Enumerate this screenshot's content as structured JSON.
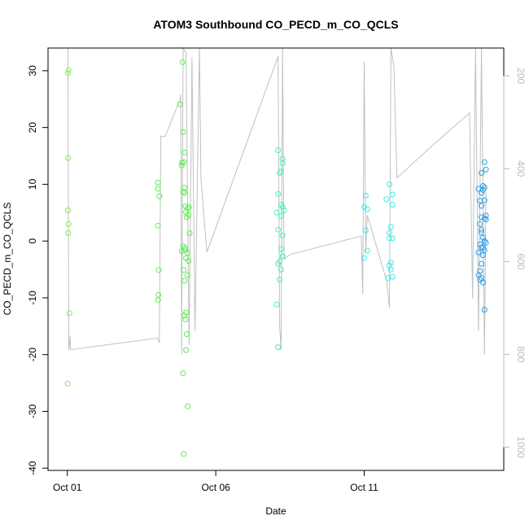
{
  "chart_data": {
    "type": "scatter",
    "title": "ATOM3 Southbound CO_PECD_m_CO_QCLS",
    "xlabel": "Date",
    "ylabel": "CO_PECD_m_CO_QCLS",
    "x_unit": "days since Oct 01",
    "xlim": [
      -0.65,
      14.7
    ],
    "ylim": [
      -40.4,
      34
    ],
    "x_ticks": [
      {
        "value": 0,
        "label": "Oct 01"
      },
      {
        "value": 5,
        "label": "Oct 06"
      },
      {
        "value": 10,
        "label": "Oct 11"
      }
    ],
    "y_ticks": [
      -40,
      -30,
      -20,
      -10,
      0,
      10,
      20,
      30
    ],
    "right_axis": {
      "color": "#bbbbbb",
      "ticks": [
        200,
        400,
        600,
        800,
        1000
      ],
      "range_top_value": 140,
      "range_bottom_value": 1050
    },
    "profile_color": "#c0c0c0",
    "profile_line": [
      [
        0.02,
        140
      ],
      [
        0.05,
        790
      ],
      [
        0.1,
        760
      ],
      [
        0.1,
        790
      ],
      [
        3.03,
        765
      ],
      [
        3.1,
        775
      ],
      [
        3.15,
        330
      ],
      [
        3.3,
        330
      ],
      [
        3.8,
        250
      ],
      [
        3.82,
        240
      ],
      [
        3.85,
        800
      ],
      [
        3.9,
        140
      ],
      [
        4.0,
        150
      ],
      [
        4.1,
        780
      ],
      [
        4.2,
        160
      ],
      [
        4.3,
        750
      ],
      [
        4.45,
        140
      ],
      [
        4.5,
        420
      ],
      [
        4.6,
        500
      ],
      [
        4.7,
        580
      ],
      [
        7.1,
        158
      ],
      [
        7.15,
        740
      ],
      [
        7.2,
        790
      ],
      [
        7.25,
        140
      ],
      [
        7.3,
        595
      ],
      [
        7.5,
        585
      ],
      [
        9.9,
        545
      ],
      [
        9.95,
        670
      ],
      [
        10.0,
        170
      ],
      [
        10.05,
        580
      ],
      [
        10.1,
        500
      ],
      [
        10.75,
        640
      ],
      [
        10.85,
        700
      ],
      [
        10.9,
        140
      ],
      [
        11.0,
        180
      ],
      [
        11.1,
        420
      ],
      [
        12.3,
        350
      ],
      [
        13.55,
        280
      ],
      [
        13.65,
        680
      ],
      [
        13.75,
        140
      ],
      [
        13.85,
        750
      ],
      [
        13.95,
        140
      ],
      [
        14.05,
        800
      ],
      [
        14.1,
        450
      ]
    ],
    "series": [
      {
        "color": "#80ee50",
        "points": [
          [
            0.02,
            29.6
          ],
          [
            0.04,
            30.1
          ],
          [
            0.03,
            14.6
          ],
          [
            0.02,
            5.4
          ],
          [
            0.04,
            3.0
          ],
          [
            0.03,
            1.4
          ],
          [
            0.07,
            -12.7
          ],
          [
            0.01,
            -25.1
          ]
        ]
      },
      {
        "color": "#5af050",
        "points": [
          [
            3.05,
            10.3
          ],
          [
            3.05,
            9.2
          ],
          [
            3.1,
            7.9
          ],
          [
            3.05,
            2.7
          ],
          [
            3.08,
            -5.1
          ],
          [
            3.07,
            -9.5
          ],
          [
            3.06,
            -10.4
          ],
          [
            3.8,
            24.1
          ],
          [
            3.88,
            31.5
          ],
          [
            3.9,
            19.2
          ],
          [
            3.95,
            15.6
          ],
          [
            3.85,
            13.3
          ],
          [
            3.92,
            13.9
          ],
          [
            3.95,
            9.4
          ],
          [
            3.9,
            8.7
          ],
          [
            3.95,
            8.5
          ],
          [
            3.98,
            6.1
          ],
          [
            4.05,
            5.8
          ],
          [
            4.0,
            5.1
          ],
          [
            4.02,
            4.2
          ],
          [
            4.1,
            6.0
          ],
          [
            4.12,
            1.4
          ],
          [
            3.85,
            -1.8
          ],
          [
            3.9,
            -0.9
          ],
          [
            3.97,
            -1.6
          ],
          [
            4.0,
            -3.0
          ],
          [
            4.05,
            -2.1
          ],
          [
            4.08,
            -3.5
          ],
          [
            3.92,
            -5.1
          ],
          [
            4.05,
            -6.0
          ],
          [
            3.95,
            -13.1
          ],
          [
            4.0,
            -12.6
          ],
          [
            3.98,
            -13.8
          ],
          [
            4.02,
            -16.4
          ],
          [
            4.0,
            -19.2
          ],
          [
            3.9,
            -23.3
          ],
          [
            4.05,
            -29.1
          ],
          [
            3.92,
            -37.5
          ],
          [
            3.95,
            -7.0
          ],
          [
            3.97,
            -1.2
          ],
          [
            3.86,
            13.8
          ],
          [
            4.08,
            4.6
          ]
        ]
      },
      {
        "color": "#48f0b0",
        "points": [
          [
            7.1,
            16.0
          ],
          [
            7.25,
            14.5
          ],
          [
            7.25,
            13.7
          ],
          [
            7.2,
            12.3
          ],
          [
            7.15,
            12.0
          ],
          [
            7.1,
            8.3
          ],
          [
            7.2,
            6.4
          ],
          [
            7.25,
            6.0
          ],
          [
            7.3,
            5.4
          ],
          [
            7.2,
            4.4
          ],
          [
            7.1,
            2.0
          ],
          [
            7.05,
            5.0
          ],
          [
            7.25,
            1.0
          ],
          [
            7.2,
            -1.4
          ],
          [
            7.25,
            -2.7
          ],
          [
            7.15,
            -3.6
          ],
          [
            7.1,
            -4.0
          ],
          [
            7.2,
            -5.0
          ],
          [
            7.15,
            -6.8
          ],
          [
            7.05,
            -11.2
          ],
          [
            7.1,
            -18.7
          ]
        ]
      },
      {
        "color": "#38e8e8",
        "points": [
          [
            10.05,
            8.0
          ],
          [
            10.0,
            6.0
          ],
          [
            10.1,
            5.6
          ],
          [
            10.05,
            1.9
          ],
          [
            10.1,
            -1.7
          ],
          [
            10.0,
            -3.0
          ],
          [
            10.85,
            10.0
          ],
          [
            10.75,
            7.4
          ],
          [
            10.95,
            8.2
          ],
          [
            10.95,
            6.4
          ],
          [
            10.9,
            2.5
          ],
          [
            10.85,
            0.5
          ],
          [
            10.95,
            0.5
          ],
          [
            10.9,
            -3.8
          ],
          [
            10.85,
            -4.3
          ],
          [
            10.9,
            -5.0
          ],
          [
            10.8,
            -6.5
          ],
          [
            10.95,
            -6.3
          ],
          [
            10.85,
            1.5
          ]
        ]
      },
      {
        "color": "#2a9ce8",
        "points": [
          [
            14.05,
            13.9
          ],
          [
            14.1,
            12.6
          ],
          [
            13.95,
            12.0
          ],
          [
            14.0,
            9.7
          ],
          [
            13.85,
            9.2
          ],
          [
            14.0,
            9.0
          ],
          [
            13.95,
            8.5
          ],
          [
            14.05,
            9.4
          ],
          [
            13.9,
            7.1
          ],
          [
            14.05,
            7.2
          ],
          [
            13.95,
            6.2
          ],
          [
            14.1,
            4.5
          ],
          [
            14.05,
            4.0
          ],
          [
            13.9,
            3.0
          ],
          [
            13.95,
            1.5
          ],
          [
            14.0,
            0.6
          ],
          [
            14.05,
            0.0
          ],
          [
            14.1,
            -0.3
          ],
          [
            13.9,
            -0.6
          ],
          [
            13.95,
            -1.1
          ],
          [
            14.05,
            -1.6
          ],
          [
            13.85,
            -2.0
          ],
          [
            14.0,
            -2.5
          ],
          [
            13.95,
            -4.0
          ],
          [
            13.9,
            -5.3
          ],
          [
            13.85,
            -6.0
          ],
          [
            13.95,
            -6.5
          ],
          [
            14.0,
            -7.3
          ],
          [
            13.9,
            -6.8
          ],
          [
            14.05,
            -12.1
          ],
          [
            14.1,
            3.8
          ],
          [
            13.95,
            4.2
          ],
          [
            14.0,
            -1.2
          ],
          [
            13.95,
            2.0
          ]
        ]
      }
    ]
  }
}
